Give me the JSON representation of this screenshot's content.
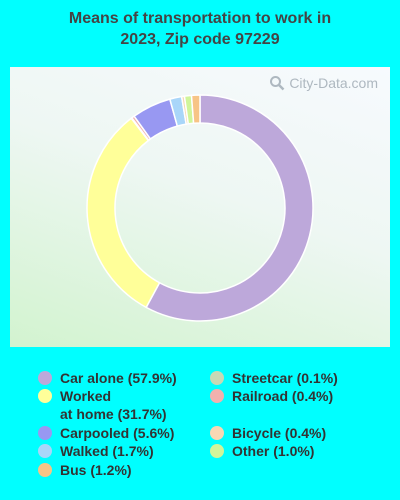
{
  "title_line1": "Means of transportation to work in",
  "title_line2": "2023, Zip code 97229",
  "watermark": "City-Data.com",
  "chart_data": {
    "type": "pie",
    "style": "donut",
    "title": "Means of transportation to work in 2023, Zip code 97229",
    "slices": [
      {
        "label": "Car alone",
        "value": 57.9,
        "display": "Car alone (57.9%)",
        "color": "#BDA8DA"
      },
      {
        "label": "Worked at home",
        "value": 31.7,
        "display": "Worked at home (31.7%)",
        "line1": "Worked",
        "line2": "at home (31.7%)",
        "color": "#FFFF99"
      },
      {
        "label": "Streetcar",
        "value": 0.1,
        "display": "Streetcar (0.1%)",
        "color": "#C8D9B5"
      },
      {
        "label": "Railroad",
        "value": 0.4,
        "display": "Railroad (0.4%)",
        "color": "#F2B1AE"
      },
      {
        "label": "Carpooled",
        "value": 5.6,
        "display": "Carpooled (5.6%)",
        "color": "#9898F2"
      },
      {
        "label": "Walked",
        "value": 1.7,
        "display": "Walked (1.7%)",
        "color": "#A9D6F9"
      },
      {
        "label": "Bicycle",
        "value": 0.4,
        "display": "Bicycle (0.4%)",
        "color": "#F8D8B4"
      },
      {
        "label": "Other",
        "value": 1.0,
        "display": "Other (1.0%)",
        "color": "#D0F59A"
      },
      {
        "label": "Bus",
        "value": 1.2,
        "display": "Bus (1.2%)",
        "color": "#F7C486"
      }
    ],
    "legend_placement": "bottom"
  }
}
